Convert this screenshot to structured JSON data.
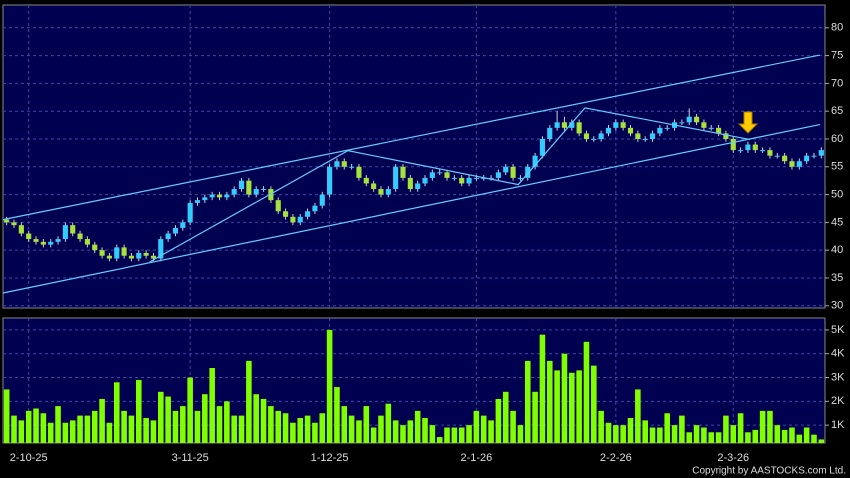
{
  "chart_data": {
    "type": "candlestick",
    "categories": [
      null,
      null,
      null,
      "2-10-25",
      null,
      null,
      null,
      null,
      null,
      null,
      null,
      null,
      null,
      null,
      null,
      null,
      null,
      null,
      null,
      null,
      null,
      null,
      null,
      null,
      null,
      "3-11-25",
      null,
      null,
      null,
      null,
      null,
      null,
      null,
      null,
      null,
      null,
      null,
      null,
      null,
      null,
      null,
      null,
      null,
      null,
      "1-12-25",
      null,
      null,
      null,
      null,
      null,
      null,
      null,
      null,
      null,
      null,
      null,
      null,
      null,
      null,
      null,
      null,
      null,
      null,
      null,
      "2-1-26",
      null,
      null,
      null,
      null,
      null,
      null,
      null,
      null,
      null,
      null,
      null,
      null,
      null,
      null,
      null,
      null,
      null,
      null,
      "2-2-26",
      null,
      null,
      null,
      null,
      null,
      null,
      null,
      null,
      null,
      null,
      null,
      null,
      null,
      null,
      null,
      "2-3-26",
      null,
      null,
      null,
      null,
      null,
      null,
      null,
      null,
      null,
      null,
      null,
      null
    ],
    "open": [
      45.5,
      45,
      44.5,
      43,
      42,
      41.5,
      41,
      41.5,
      42,
      44.5,
      43,
      42,
      41,
      40,
      39,
      38.5,
      40.5,
      39,
      38.5,
      39.5,
      39,
      38.5,
      42,
      43,
      44,
      45,
      48.5,
      49,
      49.5,
      50,
      49.5,
      50,
      51,
      52.5,
      50,
      51,
      51,
      49,
      47,
      46,
      45,
      46,
      47,
      48,
      50,
      55,
      56,
      55,
      55,
      53,
      52,
      51,
      50,
      51,
      55,
      53,
      51,
      52,
      53,
      54,
      54,
      53,
      53,
      52,
      53,
      53,
      53,
      53,
      54,
      55,
      53,
      53,
      55,
      57,
      60,
      62,
      63,
      62,
      63,
      61,
      60,
      60,
      61,
      62,
      63,
      62,
      61,
      60,
      60,
      61,
      62,
      62,
      63,
      63,
      64,
      63,
      62,
      62,
      61,
      60,
      58,
      58,
      59,
      58,
      58,
      57,
      57,
      56,
      55,
      56,
      57,
      57
    ],
    "high": [
      46,
      45.5,
      45,
      43.5,
      42.5,
      42,
      42,
      42.5,
      45,
      45,
      43.5,
      42.5,
      41.5,
      40.5,
      39.5,
      41,
      41,
      39.5,
      40,
      40,
      39.5,
      42.5,
      43.5,
      44.5,
      45.5,
      49,
      49.5,
      50,
      50.5,
      50.5,
      50.5,
      51.5,
      53,
      53,
      51.5,
      51.5,
      51.5,
      49.5,
      47.5,
      46.5,
      46.5,
      47.5,
      48.5,
      50.5,
      55.5,
      56.5,
      56.5,
      55.5,
      55.5,
      53.5,
      52.5,
      51.5,
      51.5,
      55.5,
      55.5,
      53.5,
      52.5,
      53.5,
      54.5,
      54.5,
      54.5,
      53.5,
      53.5,
      53.5,
      53.5,
      53.5,
      53.5,
      54.5,
      55.5,
      55.5,
      53.5,
      55.5,
      57.5,
      60.5,
      62.5,
      65,
      64,
      63.5,
      63.5,
      61.5,
      60.5,
      61.5,
      62.5,
      63.5,
      63.5,
      62.5,
      61.5,
      60.5,
      61.5,
      62.5,
      62.5,
      63.5,
      63.5,
      65.5,
      64.5,
      63.5,
      62.5,
      62.5,
      61.5,
      60.5,
      58.5,
      59.5,
      59.5,
      58.5,
      58.5,
      57.5,
      57.5,
      56.5,
      56.5,
      57.5,
      57.5,
      58.5
    ],
    "low": [
      44.5,
      44,
      42.5,
      41.5,
      41,
      40.5,
      40.5,
      41,
      41.5,
      42.5,
      41.5,
      40.5,
      39.5,
      38.5,
      38,
      38,
      38.5,
      38,
      38,
      38.5,
      38,
      38,
      41.5,
      42.5,
      43.5,
      44.5,
      48,
      48.5,
      49,
      49,
      49,
      49.5,
      50.5,
      49.5,
      49.5,
      50.5,
      48.5,
      46.5,
      45.5,
      44.5,
      44.5,
      45.5,
      46.5,
      47.5,
      49.5,
      54.5,
      54.5,
      54.5,
      52.5,
      51.5,
      50.5,
      49.5,
      49.5,
      50.5,
      52.5,
      50.5,
      50.5,
      51.5,
      52.5,
      53.5,
      52.5,
      52.5,
      51.5,
      51.5,
      52.5,
      52.5,
      52.5,
      52.5,
      53.5,
      52.5,
      52.5,
      52.5,
      54.5,
      56.5,
      59.5,
      61.5,
      61.5,
      61.5,
      60.5,
      59.5,
      59.5,
      59.5,
      60.5,
      61.5,
      61.5,
      60.5,
      59.5,
      59.5,
      59.5,
      60.5,
      61.5,
      61.5,
      62.5,
      62.5,
      62.5,
      61.5,
      61.5,
      60.5,
      59.5,
      57.5,
      57.5,
      57.5,
      57.5,
      57.5,
      56.5,
      56.5,
      55.5,
      54.5,
      54.5,
      55.5,
      56.5,
      56.5
    ],
    "close": [
      45,
      44.5,
      43,
      42,
      41.5,
      41,
      41.5,
      42,
      44.5,
      43,
      42,
      41,
      40,
      39,
      38.5,
      40.5,
      39,
      38.5,
      39.5,
      39,
      38.5,
      42,
      43,
      44,
      45,
      48.5,
      49,
      49.5,
      50,
      49.5,
      50,
      51,
      52.5,
      50,
      51,
      51,
      49,
      47,
      46,
      45,
      46,
      47,
      48,
      50,
      55,
      56,
      55,
      55,
      53,
      52,
      51,
      50,
      51,
      55,
      53,
      51,
      52,
      53,
      54,
      54,
      53,
      53,
      52,
      53,
      53,
      53,
      53,
      54,
      55,
      53,
      53,
      55,
      57,
      60,
      62,
      63,
      62,
      63,
      61,
      60,
      60,
      61,
      62,
      63,
      62,
      61,
      60,
      60,
      61,
      62,
      62,
      63,
      63,
      64,
      63,
      62,
      62,
      61,
      60,
      58,
      58,
      59,
      58,
      58,
      57,
      57,
      56,
      55,
      56,
      57,
      57,
      58
    ],
    "up_color": "#33ccff",
    "down_color": "#a6e23a",
    "ylim": [
      29.6,
      84.1
    ],
    "yticks": [
      30,
      35,
      40,
      45,
      50,
      55,
      60,
      65,
      70,
      75,
      80
    ],
    "grid": true,
    "trend_lines": [
      {
        "color": "#66ccff",
        "x": [
          -0.5,
          110.8
        ],
        "y": [
          45.5,
          75.1
        ]
      },
      {
        "color": "#66ccff",
        "x": [
          -0.5,
          110.8
        ],
        "y": [
          32.3,
          62.6
        ]
      },
      {
        "color": "#66ccff",
        "x": [
          19.5,
          46.5,
          69.7,
          78.8,
          101.3
        ],
        "y": [
          37.9,
          57.9,
          51.8,
          65.6,
          59.9
        ]
      }
    ],
    "volume": {
      "type": "bar",
      "color": "#80ff00",
      "values": [
        2500,
        1400,
        1200,
        1600,
        1700,
        1500,
        1100,
        1800,
        1100,
        1200,
        1400,
        1400,
        1600,
        2100,
        1100,
        2800,
        1600,
        1400,
        2900,
        1300,
        1200,
        2400,
        2200,
        1600,
        1800,
        3000,
        1600,
        2300,
        3400,
        1800,
        2000,
        1400,
        1400,
        3700,
        2300,
        2100,
        1800,
        1600,
        1500,
        1100,
        1300,
        1400,
        1100,
        1500,
        5000,
        2600,
        1800,
        1400,
        1200,
        1800,
        900,
        1400,
        1900,
        1200,
        1000,
        1200,
        1600,
        1300,
        1000,
        500,
        900,
        900,
        900,
        1000,
        1600,
        1400,
        1200,
        2100,
        2400,
        1600,
        1000,
        3700,
        2400,
        4800,
        3700,
        3300,
        4000,
        3200,
        3300,
        4500,
        3500,
        1600,
        1100,
        1000,
        1000,
        1300,
        2500,
        1200,
        900,
        900,
        1500,
        1000,
        1400,
        700,
        1000,
        900,
        700,
        700,
        1400,
        1000,
        1500,
        700,
        800,
        1600,
        1600,
        1000,
        800,
        900,
        600,
        900,
        600,
        400
      ],
      "ylim": [
        250,
        5500
      ],
      "yticks": [
        {
          "value": 1000,
          "label": "1K"
        },
        {
          "value": 2000,
          "label": "2K"
        },
        {
          "value": 3000,
          "label": "3K"
        },
        {
          "value": 4000,
          "label": "4K"
        },
        {
          "value": 5000,
          "label": "5K"
        }
      ]
    }
  },
  "footer": "Copyright by AASTOCKS.com Ltd."
}
